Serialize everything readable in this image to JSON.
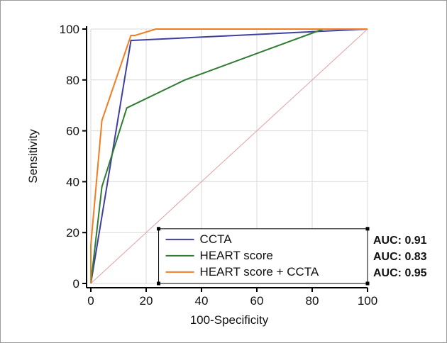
{
  "chart_data": {
    "type": "line",
    "xlabel": "100-Specificity",
    "ylabel": "Sensitivity",
    "xlim": [
      0,
      100
    ],
    "ylim": [
      0,
      100
    ],
    "xticks": [
      "0",
      "20",
      "40",
      "60",
      "80",
      "100"
    ],
    "yticks": [
      "0",
      "20",
      "40",
      "60",
      "80",
      "100"
    ],
    "grid": true,
    "legend_position": "bottom-right",
    "reference_line": {
      "from": [
        0,
        0
      ],
      "to": [
        100,
        100
      ],
      "color": "#e0a0a0"
    },
    "series": [
      {
        "name": "CCTA",
        "color": "#3f3fa0",
        "points": [
          [
            0,
            0
          ],
          [
            14.5,
            95.5
          ],
          [
            100,
            100
          ]
        ],
        "auc_label": "AUC: 0.91"
      },
      {
        "name": "HEART score",
        "color": "#2f7d32",
        "points": [
          [
            0,
            0
          ],
          [
            4,
            38
          ],
          [
            13,
            69
          ],
          [
            34,
            80
          ],
          [
            84,
            100
          ],
          [
            100,
            100
          ]
        ],
        "auc_label": "AUC: 0.83"
      },
      {
        "name": "HEART score + CCTA",
        "color": "#f07d22",
        "points": [
          [
            0,
            0
          ],
          [
            0,
            15
          ],
          [
            4,
            64
          ],
          [
            14.5,
            97.5
          ],
          [
            16,
            97.5
          ],
          [
            23.5,
            100
          ],
          [
            100,
            100
          ]
        ],
        "auc_label": "AUC: 0.95"
      }
    ]
  }
}
